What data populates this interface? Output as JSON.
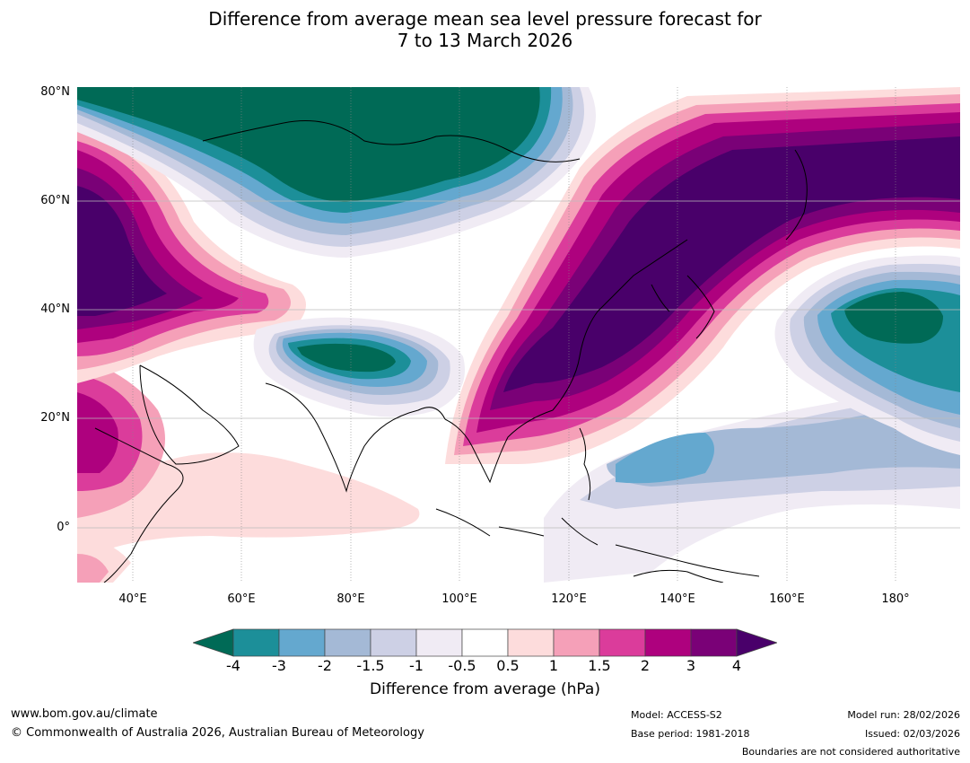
{
  "title": {
    "line1": "Difference from average mean sea level pressure forecast for",
    "line2": "7 to 13 March 2026"
  },
  "map": {
    "lat_labels": [
      "80°N",
      "60°N",
      "40°N",
      "20°N",
      "0°"
    ],
    "lon_labels": [
      "40°E",
      "60°E",
      "80°E",
      "100°E",
      "120°E",
      "140°E",
      "160°E",
      "180°"
    ]
  },
  "legend": {
    "ticks": [
      "-4",
      "-3",
      "-2",
      "-1.5",
      "-1",
      "-0.5",
      "0.5",
      "1",
      "1.5",
      "2",
      "3",
      "4"
    ],
    "colors": [
      "#006a56",
      "#1c8f99",
      "#64a8cf",
      "#a4b9d6",
      "#cdd0e5",
      "#f0ebf4",
      "#ffffff",
      "#fddcdc",
      "#f5a0b8",
      "#db3c9b",
      "#ae017e",
      "#7a0177",
      "#49006a"
    ],
    "label": "Difference from average (hPa)"
  },
  "footer": {
    "website": "www.bom.gov.au/climate",
    "copyright": "© Commonwealth of Australia 2026, Australian Bureau of Meteorology",
    "model": "Model: ACCESS-S2",
    "base_period": "Base period: 1981-2018",
    "model_run": "Model run: 28/02/2026",
    "issued": "Issued: 02/03/2026",
    "disclaimer": "Boundaries are not considered authoritative"
  }
}
